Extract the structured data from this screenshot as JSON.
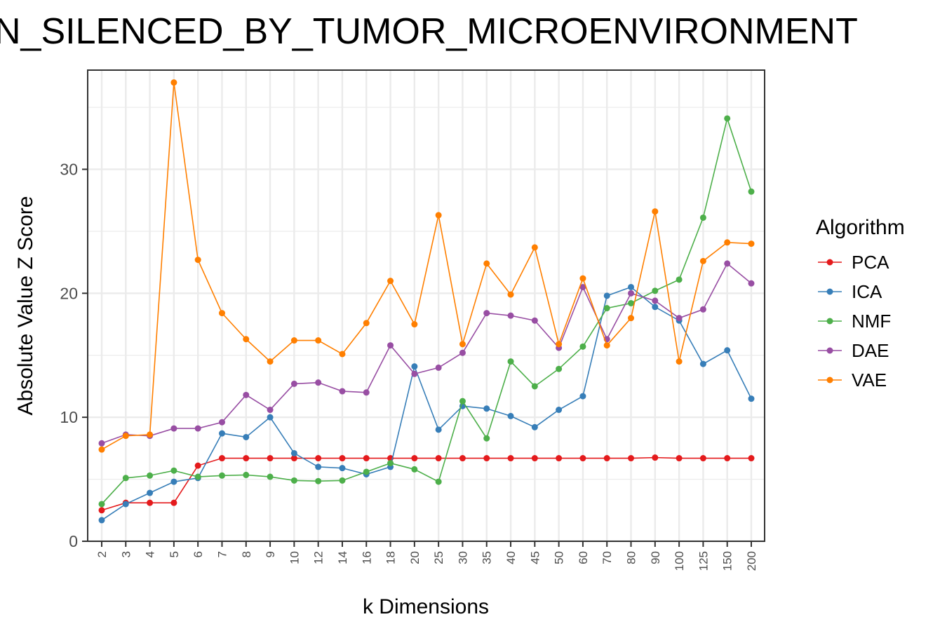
{
  "chart_data": {
    "type": "line",
    "title": "N_SILENCED_BY_TUMOR_MICROENVIRONMENT",
    "xlabel": "k Dimensions",
    "ylabel": "Absolute Value Z Score",
    "categories": [
      "2",
      "3",
      "4",
      "5",
      "6",
      "7",
      "8",
      "9",
      "10",
      "12",
      "14",
      "16",
      "18",
      "20",
      "25",
      "30",
      "35",
      "40",
      "45",
      "50",
      "60",
      "70",
      "80",
      "90",
      "100",
      "125",
      "150",
      "200"
    ],
    "yticks": [
      "0",
      "10",
      "20",
      "30"
    ],
    "ylim": [
      0,
      38
    ],
    "grid": true,
    "legend_title": "Algorithm",
    "legend_position": "right",
    "series": [
      {
        "name": "PCA",
        "color": "#e41a1c",
        "values": [
          2.5,
          3.1,
          3.1,
          3.1,
          6.1,
          6.7,
          6.7,
          6.7,
          6.7,
          6.7,
          6.7,
          6.7,
          6.7,
          6.7,
          6.7,
          6.7,
          6.7,
          6.7,
          6.7,
          6.7,
          6.7,
          6.7,
          6.7,
          6.75,
          6.7,
          6.7,
          6.7,
          6.7
        ]
      },
      {
        "name": "ICA",
        "color": "#377eb8",
        "values": [
          1.7,
          3.0,
          3.9,
          4.8,
          5.1,
          8.7,
          8.4,
          10.0,
          7.1,
          6.0,
          5.9,
          5.4,
          6.0,
          14.1,
          9.0,
          10.9,
          10.7,
          10.1,
          9.2,
          10.6,
          11.7,
          19.8,
          20.5,
          18.9,
          17.8,
          14.3,
          15.4,
          11.5
        ]
      },
      {
        "name": "NMF",
        "color": "#4daf4a",
        "values": [
          3.0,
          5.1,
          5.3,
          5.7,
          5.2,
          5.3,
          5.35,
          5.2,
          4.9,
          4.85,
          4.9,
          5.6,
          6.3,
          5.8,
          4.8,
          11.3,
          8.3,
          14.5,
          12.5,
          13.9,
          15.7,
          18.8,
          19.2,
          20.2,
          21.1,
          26.1,
          34.1,
          28.2
        ]
      },
      {
        "name": "DAE",
        "color": "#984ea3",
        "values": [
          7.9,
          8.6,
          8.5,
          9.1,
          9.1,
          9.6,
          11.8,
          10.6,
          12.7,
          12.8,
          12.1,
          12.0,
          15.8,
          13.5,
          14.0,
          15.2,
          18.4,
          18.2,
          17.8,
          15.6,
          20.5,
          16.3,
          20.0,
          19.4,
          18.0,
          18.7,
          22.4,
          20.8
        ]
      },
      {
        "name": "VAE",
        "color": "#ff7f00",
        "values": [
          7.4,
          8.5,
          8.6,
          37.0,
          22.7,
          18.4,
          16.3,
          14.5,
          16.2,
          16.2,
          15.1,
          17.6,
          21.0,
          17.5,
          26.3,
          15.9,
          22.4,
          19.9,
          23.7,
          15.9,
          21.2,
          15.8,
          18.0,
          26.6,
          14.5,
          22.6,
          24.1,
          24.0
        ]
      }
    ]
  }
}
